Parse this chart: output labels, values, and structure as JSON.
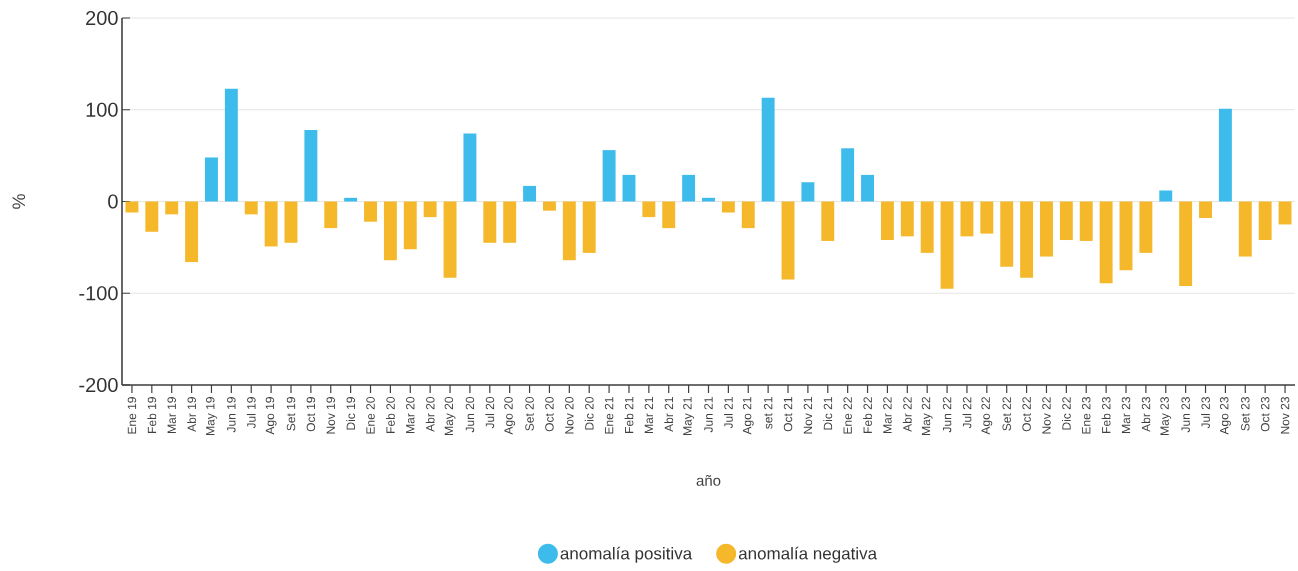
{
  "chart_data": {
    "type": "bar",
    "xlabel": "año",
    "ylabel": "%",
    "categories": [
      "Ene 19",
      "Feb 19",
      "Mar 19",
      "Abr 19",
      "May 19",
      "Jun 19",
      "Jul 19",
      "Ago 19",
      "Set 19",
      "Oct 19",
      "Nov 19",
      "Dic 19",
      "Ene 20",
      "Feb 20",
      "Mar 20",
      "Abr 20",
      "May 20",
      "Jun 20",
      "Jul 20",
      "Ago 20",
      "Set 20",
      "Oct 20",
      "Nov 20",
      "Dic 20",
      "Ene 21",
      "Feb 21",
      "Mar 21",
      "Abr 21",
      "May 21",
      "Jun 21",
      "Jul 21",
      "Ago 21",
      "set 21",
      "Oct 21",
      "Nov 21",
      "Dic 21",
      "Ene 22",
      "Feb 22",
      "Mar 22",
      "Abr 22",
      "May 22",
      "Jun 22",
      "Jul 22",
      "Ago 22",
      "Set 22",
      "Oct 22",
      "Nov 22",
      "Dic 22",
      "Ene 23",
      "Feb 23",
      "Mar 23",
      "Abr 23",
      "May 23",
      "Jun 23",
      "Jul 23",
      "Ago 23",
      "Set 23",
      "Oct 23",
      "Nov 23"
    ],
    "series": [
      {
        "name": "anomalía positiva",
        "color": "#3dbbeb",
        "values": [
          null,
          null,
          null,
          null,
          48,
          123,
          null,
          null,
          null,
          78,
          null,
          4,
          null,
          null,
          null,
          null,
          null,
          74,
          null,
          null,
          17,
          null,
          null,
          null,
          56,
          29,
          null,
          null,
          29,
          4,
          null,
          null,
          113,
          null,
          21,
          null,
          58,
          29,
          null,
          null,
          null,
          null,
          null,
          null,
          null,
          null,
          null,
          null,
          null,
          null,
          null,
          null,
          12,
          null,
          null,
          101,
          null,
          null,
          null
        ]
      },
      {
        "name": "anomalía negativa",
        "color": "#f5b82a",
        "values": [
          -12,
          -33,
          -14,
          -66,
          null,
          null,
          -14,
          -49,
          -45,
          null,
          -29,
          null,
          -22,
          -64,
          -52,
          -17,
          -83,
          null,
          -45,
          -45,
          null,
          -10,
          -64,
          -56,
          null,
          null,
          -17,
          -29,
          null,
          null,
          -12,
          -29,
          null,
          -85,
          null,
          -43,
          null,
          null,
          -42,
          -38,
          -56,
          -95,
          -38,
          -35,
          -71,
          -83,
          -60,
          -42,
          -43,
          -89,
          -75,
          -56,
          null,
          -92,
          -18,
          null,
          -60,
          -42,
          -25
        ]
      }
    ],
    "ylim": [
      -200,
      200
    ],
    "yticks": [
      -200,
      -100,
      0,
      100,
      200
    ],
    "grid": "y",
    "legend": "bottom"
  }
}
